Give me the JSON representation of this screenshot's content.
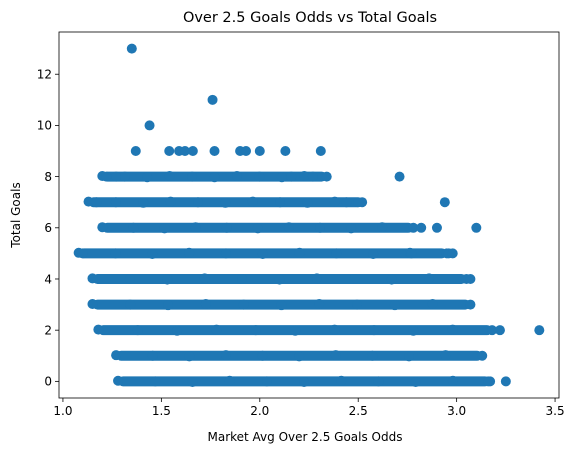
{
  "chart_data": {
    "type": "scatter",
    "title": "Over 2.5 Goals Odds vs Total Goals",
    "xlabel": "Market Avg Over 2.5 Goals Odds",
    "ylabel": "Total Goals",
    "xlim": [
      0.98,
      3.52
    ],
    "ylim": [
      -0.65,
      13.65
    ],
    "xticks": [
      1.0,
      1.5,
      2.0,
      2.5,
      3.0,
      3.5
    ],
    "xtick_labels": [
      "1.0",
      "1.5",
      "2.0",
      "2.5",
      "3.0",
      "3.5"
    ],
    "yticks": [
      0,
      2,
      4,
      6,
      8,
      10,
      12
    ],
    "ytick_labels": [
      "0",
      "2",
      "4",
      "6",
      "8",
      "10",
      "12"
    ],
    "grid": false,
    "color": "#1f77b4",
    "dense_bands": [
      {
        "y": 0,
        "x_min": 1.28,
        "x_max": 3.17
      },
      {
        "y": 1,
        "x_min": 1.27,
        "x_max": 3.13
      },
      {
        "y": 2,
        "x_min": 1.18,
        "x_max": 3.18
      },
      {
        "y": 3,
        "x_min": 1.15,
        "x_max": 3.07
      },
      {
        "y": 4,
        "x_min": 1.15,
        "x_max": 3.05
      },
      {
        "y": 5,
        "x_min": 1.08,
        "x_max": 2.95
      },
      {
        "y": 6,
        "x_min": 1.2,
        "x_max": 2.78
      },
      {
        "y": 7,
        "x_min": 1.13,
        "x_max": 2.52
      },
      {
        "y": 8,
        "x_min": 1.2,
        "x_max": 2.34
      }
    ],
    "points": [
      {
        "x": 1.35,
        "y": 13
      },
      {
        "x": 1.76,
        "y": 11
      },
      {
        "x": 1.44,
        "y": 10
      },
      {
        "x": 1.37,
        "y": 9
      },
      {
        "x": 1.54,
        "y": 9
      },
      {
        "x": 1.59,
        "y": 9
      },
      {
        "x": 1.62,
        "y": 9
      },
      {
        "x": 1.66,
        "y": 9
      },
      {
        "x": 1.77,
        "y": 9
      },
      {
        "x": 1.9,
        "y": 9
      },
      {
        "x": 1.93,
        "y": 9
      },
      {
        "x": 2.0,
        "y": 9
      },
      {
        "x": 2.13,
        "y": 9
      },
      {
        "x": 2.31,
        "y": 9
      },
      {
        "x": 2.71,
        "y": 8
      },
      {
        "x": 2.94,
        "y": 7
      },
      {
        "x": 2.44,
        "y": 7
      },
      {
        "x": 2.5,
        "y": 7
      },
      {
        "x": 2.82,
        "y": 6
      },
      {
        "x": 2.9,
        "y": 6
      },
      {
        "x": 3.1,
        "y": 6
      },
      {
        "x": 2.96,
        "y": 5
      },
      {
        "x": 2.98,
        "y": 5
      },
      {
        "x": 2.77,
        "y": 5
      },
      {
        "x": 3.07,
        "y": 4
      },
      {
        "x": 3.42,
        "y": 2
      },
      {
        "x": 3.22,
        "y": 2
      },
      {
        "x": 3.25,
        "y": 0
      },
      {
        "x": 3.16,
        "y": 0
      },
      {
        "x": 1.1,
        "y": 5
      },
      {
        "x": 1.17,
        "y": 7
      },
      {
        "x": 1.22,
        "y": 8
      },
      {
        "x": 1.27,
        "y": 8
      },
      {
        "x": 2.16,
        "y": 8
      },
      {
        "x": 2.27,
        "y": 8
      }
    ]
  }
}
